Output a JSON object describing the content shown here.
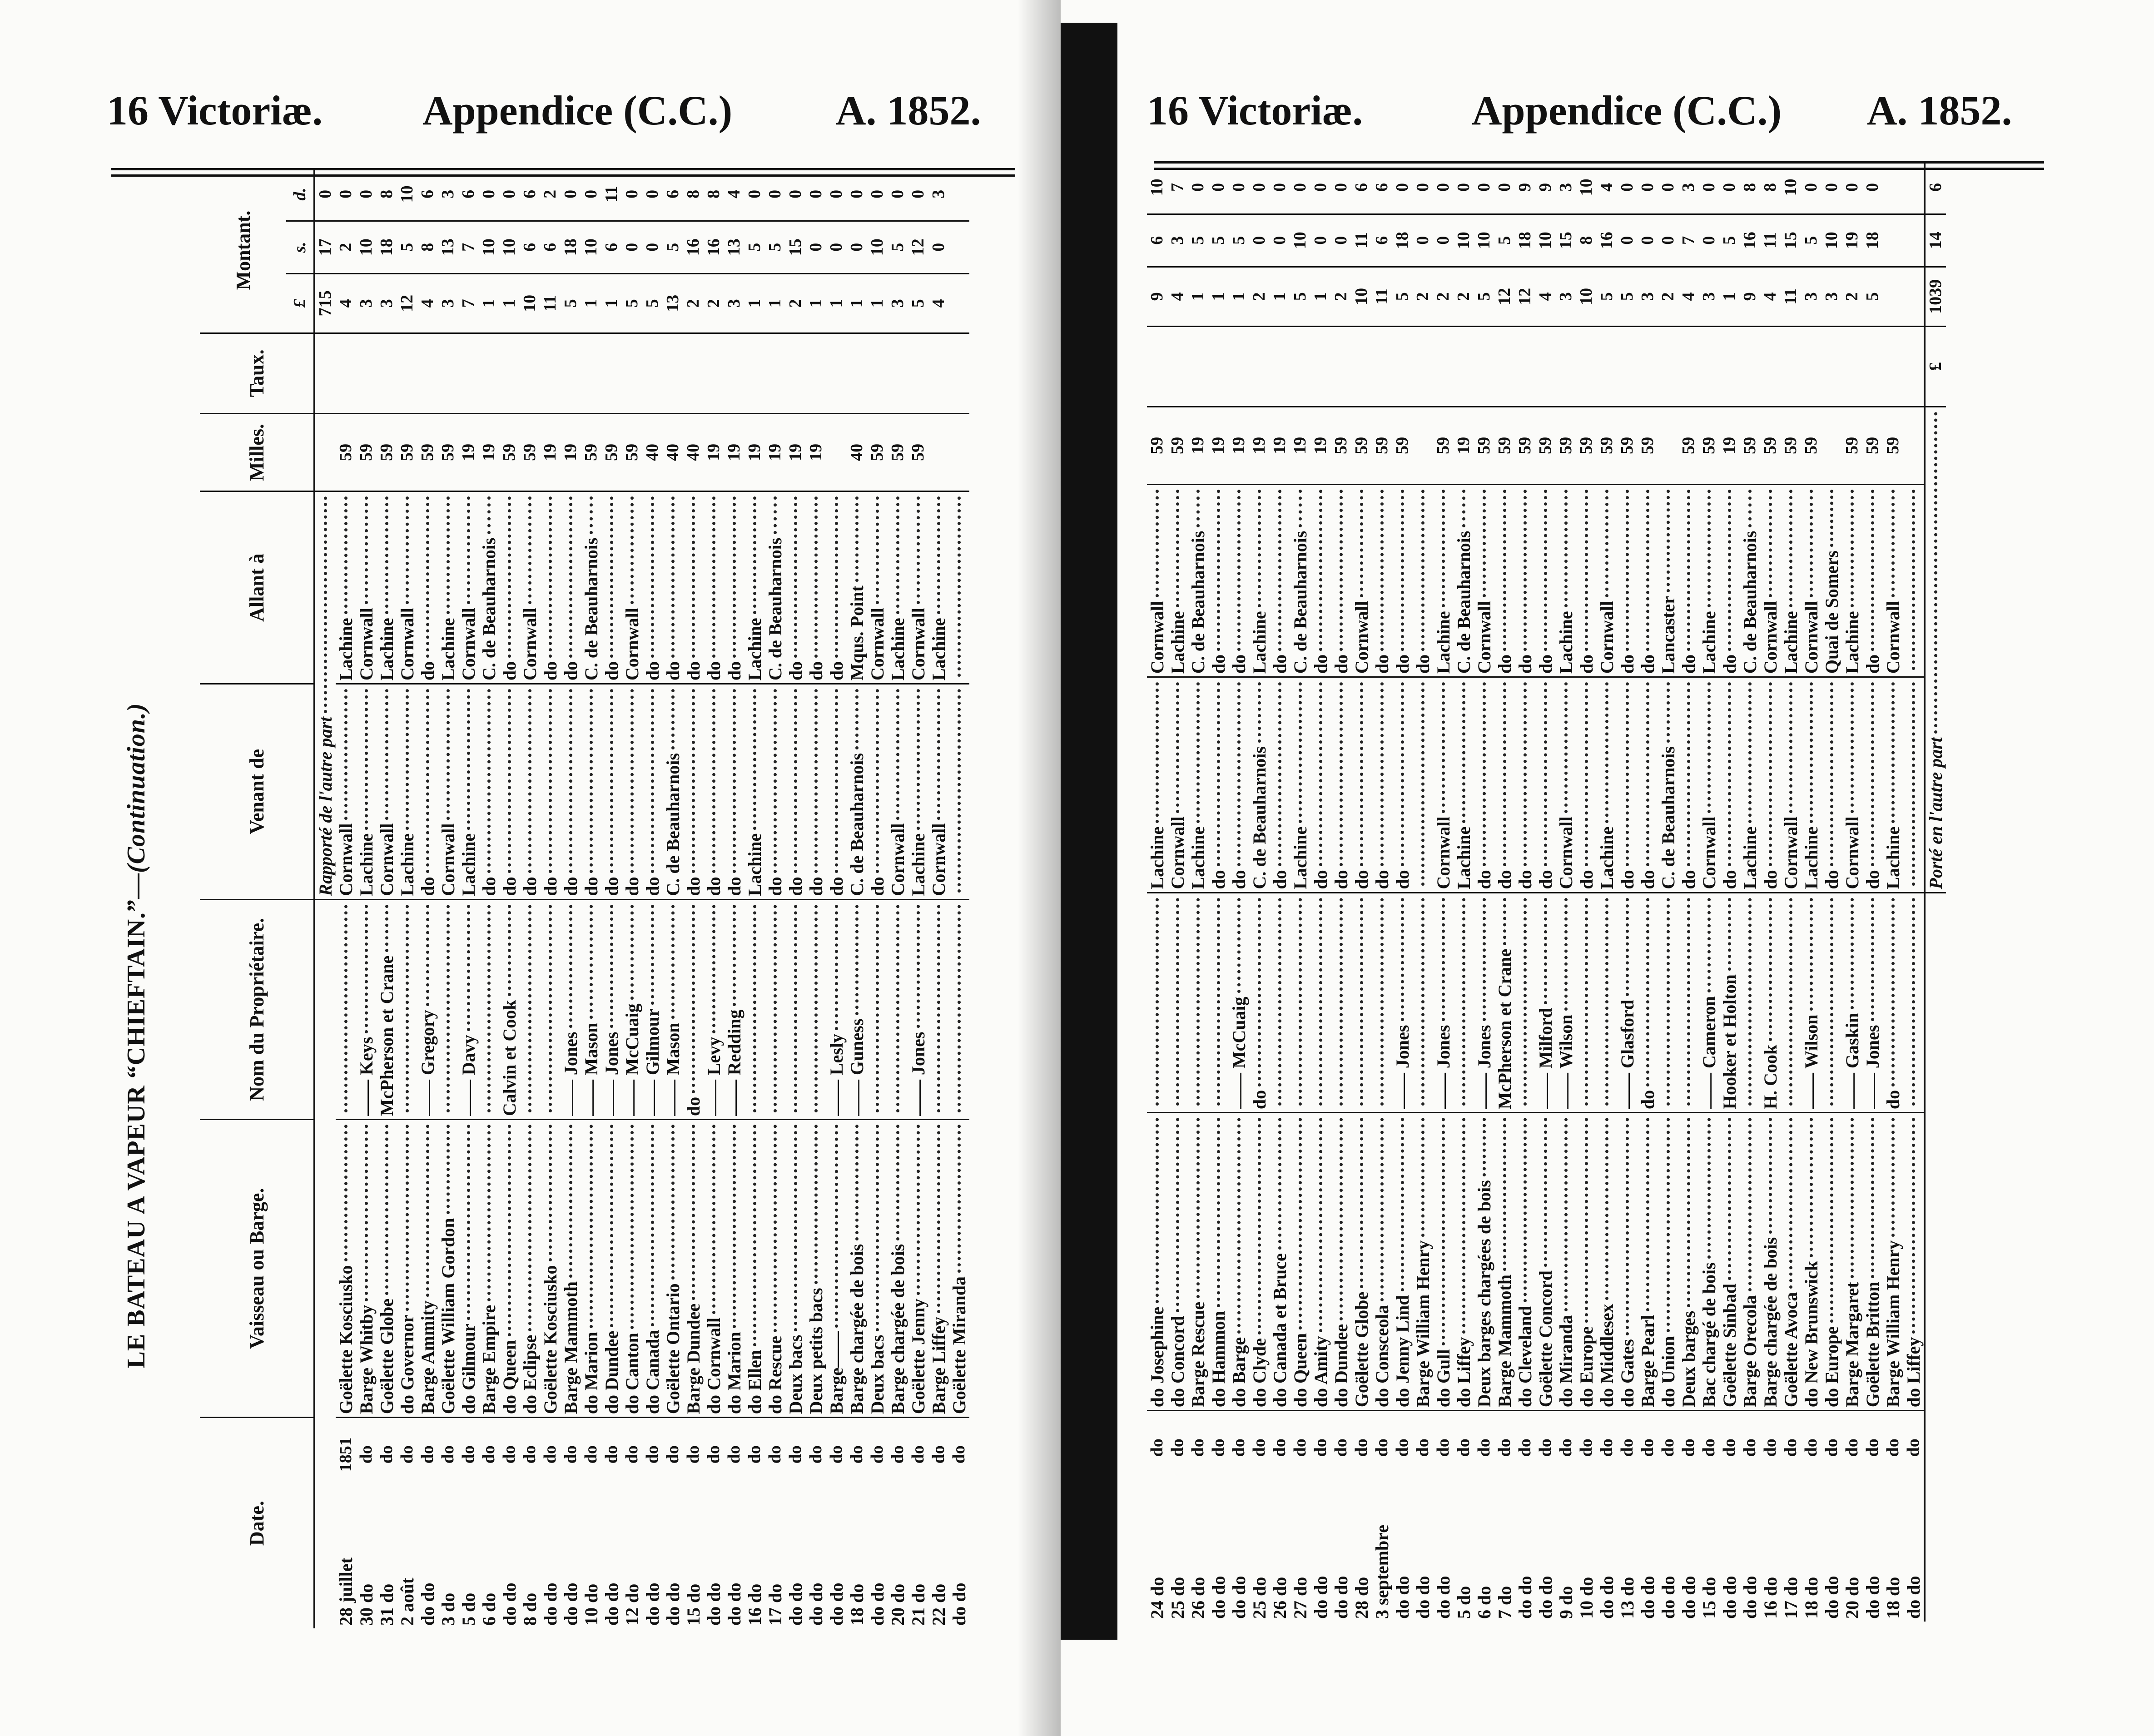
{
  "header_left": {
    "session": "16 Victoriæ.",
    "appendix": "Appendice (C.C.)",
    "year": "A. 1852."
  },
  "header_right": {
    "session": "16 Victoriæ.",
    "appendix": "Appendice (C.C.)",
    "year": "A. 1852."
  },
  "title": {
    "main": "LE BATEAU A VAPEUR “CHIEFTAIN.”—",
    "cont": "(Continuation.)"
  },
  "columns": {
    "date": "Date.",
    "vessel": "Vaisseau ou Barge.",
    "owner": "Nom du Propriétaire.",
    "from": "Venant de",
    "to": "Allant à",
    "miles": "Milles.",
    "rate": "Taux.",
    "amount": "Montant.",
    "pounds": "£",
    "shillings": "s.",
    "pence": "d."
  },
  "left_table": {
    "carried": {
      "label": "Rapporté de l'autre part",
      "pounds": "715",
      "shillings": "17",
      "pence": "0"
    },
    "rows": [
      [
        "28 juillet",
        "1851",
        "Goëlette Kosciusko",
        "",
        "Cornwall",
        "Lachine",
        "59",
        "4",
        "2",
        "0"
      ],
      [
        "30 do",
        "do",
        "Barge Whitby",
        "—— Keys",
        "Lachine",
        "Cornwall",
        "59",
        "3",
        "10",
        "0"
      ],
      [
        "31 do",
        "do",
        "Goëlette Globe",
        "McPherson et Crane",
        "Cornwall",
        "Lachine",
        "59",
        "3",
        "18",
        "8"
      ],
      [
        "2 août",
        "do",
        "do Governor",
        "",
        "Lachine",
        "Cornwall",
        "59",
        "12",
        "5",
        "10"
      ],
      [
        "do do",
        "do",
        "Barge Ammity",
        "—— Gregory",
        "do",
        "do",
        "59",
        "4",
        "8",
        "6"
      ],
      [
        "3 do",
        "do",
        "Goëlette William Gordon",
        "",
        "Cornwall",
        "Lachine",
        "59",
        "3",
        "13",
        "3"
      ],
      [
        "5 do",
        "do",
        "do Gilmour",
        "—— Davy",
        "Lachine",
        "Cornwall",
        "19",
        "7",
        "7",
        "6"
      ],
      [
        "6 do",
        "do",
        "Barge Empire",
        "",
        "do",
        "C. de Beauharnois",
        "19",
        "1",
        "10",
        "0"
      ],
      [
        "do do",
        "do",
        "do Queen",
        "Calvin et Cook",
        "do",
        "do",
        "59",
        "1",
        "10",
        "0"
      ],
      [
        "8 do",
        "do",
        "do Eclipse",
        "",
        "do",
        "Cornwall",
        "59",
        "10",
        "6",
        "6"
      ],
      [
        "do do",
        "do",
        "Goëlette Kosciusko",
        "",
        "do",
        "do",
        "19",
        "11",
        "6",
        "2"
      ],
      [
        "do do",
        "do",
        "Barge Mammoth",
        "—— Jones",
        "do",
        "do",
        "19",
        "5",
        "18",
        "0"
      ],
      [
        "10 do",
        "do",
        "do Marion",
        "—— Mason",
        "do",
        "C. de Beauharnois",
        "59",
        "1",
        "10",
        "0"
      ],
      [
        "do do",
        "do",
        "do Dundee",
        "—— Jones",
        "do",
        "do",
        "59",
        "1",
        "6",
        "11"
      ],
      [
        "12 do",
        "do",
        "do Canton",
        "—— McCuaig",
        "do",
        "Cornwall",
        "59",
        "5",
        "0",
        "0"
      ],
      [
        "do do",
        "do",
        "do Canada",
        "—— Gilmour",
        "do",
        "do",
        "40",
        "5",
        "0",
        "0"
      ],
      [
        "do do",
        "do",
        "Goëlette Ontario",
        "—— Mason",
        "C. de Beauharnois",
        "do",
        "40",
        "13",
        "5",
        "6"
      ],
      [
        "15 do",
        "do",
        "Barge Dundee",
        "do",
        "do",
        "do",
        "40",
        "2",
        "16",
        "8"
      ],
      [
        "do do",
        "do",
        "do Cornwall",
        "—— Levy",
        "do",
        "do",
        "19",
        "2",
        "16",
        "8"
      ],
      [
        "do do",
        "do",
        "do Marion",
        "—— Redding",
        "do",
        "do",
        "19",
        "3",
        "13",
        "4"
      ],
      [
        "16 do",
        "do",
        "do Ellen",
        "",
        "Lachine",
        "Lachine",
        "19",
        "1",
        "5",
        "0"
      ],
      [
        "17 do",
        "do",
        "do Rescue",
        "",
        "do",
        "C. de Beauharnois",
        "19",
        "1",
        "5",
        "0"
      ],
      [
        "do do",
        "do",
        "Deux bacs",
        "",
        "do",
        "do",
        "19",
        "2",
        "15",
        "0"
      ],
      [
        "do do",
        "do",
        "Deux petits bacs",
        "",
        "do",
        "do",
        "19",
        "1",
        "0",
        "0"
      ],
      [
        "do do",
        "do",
        "Barge——",
        "—— Lesly",
        "do",
        "do",
        "",
        "1",
        "0",
        "0"
      ],
      [
        "18 do",
        "do",
        "Barge chargée de bois",
        "—— Guness",
        "C. de Beauharnois",
        "Mqus. Point",
        "40",
        "1",
        "0",
        "0"
      ],
      [
        "do do",
        "do",
        "Deux bacs",
        "",
        "do",
        "Cornwall",
        "59",
        "1",
        "10",
        "0"
      ],
      [
        "20 do",
        "do",
        "Barge chargée de bois",
        "",
        "Cornwall",
        "Lachine",
        "59",
        "3",
        "5",
        "0"
      ],
      [
        "21 do",
        "do",
        "Goëlette Jenny",
        "—— Jones",
        "Lachine",
        "Cornwall",
        "59",
        "5",
        "12",
        "0"
      ],
      [
        "22 do",
        "do",
        "Barge Liffey",
        "",
        "Cornwall",
        "Lachine",
        "",
        "4",
        "0",
        "3"
      ],
      [
        "do do",
        "do",
        "Goëlette Miranda",
        "",
        "",
        "",
        "",
        "",
        "",
        ""
      ]
    ]
  },
  "right_table": {
    "rows": [
      [
        "24 do",
        "do",
        "do Josephine",
        "",
        "Lachine",
        "Cornwall",
        "59",
        "9",
        "6",
        "10"
      ],
      [
        "25 do",
        "do",
        "do Concord",
        "",
        "Cornwall",
        "Lachine",
        "59",
        "4",
        "3",
        "7"
      ],
      [
        "26 do",
        "do",
        "Barge Rescue",
        "",
        "Lachine",
        "C. de Beauharnois",
        "19",
        "1",
        "5",
        "0"
      ],
      [
        "do do",
        "do",
        "do Hammon",
        "",
        "do",
        "do",
        "19",
        "1",
        "5",
        "0"
      ],
      [
        "do do",
        "do",
        "do Barge",
        "—— McCuaig",
        "do",
        "do",
        "19",
        "1",
        "5",
        "0"
      ],
      [
        "25 do",
        "do",
        "do Clyde",
        "do",
        "C. de Beauharnois",
        "Lachine",
        "19",
        "2",
        "0",
        "0"
      ],
      [
        "26 do",
        "do",
        "do Canada et Bruce",
        "",
        "do",
        "do",
        "19",
        "1",
        "0",
        "0"
      ],
      [
        "27 do",
        "do",
        "do Queen",
        "",
        "Lachine",
        "C. de Beauharnois",
        "19",
        "5",
        "10",
        "0"
      ],
      [
        "do do",
        "do",
        "do Amity",
        "",
        "do",
        "do",
        "19",
        "1",
        "0",
        "0"
      ],
      [
        "do do",
        "do",
        "do Dundee",
        "",
        "do",
        "do",
        "59",
        "2",
        "0",
        "0"
      ],
      [
        "28 do",
        "do",
        "Goëlette Globe",
        "",
        "do",
        "Cornwall",
        "59",
        "10",
        "11",
        "6"
      ],
      [
        "3 septembre",
        "do",
        "do Consceola",
        "",
        "do",
        "do",
        "59",
        "11",
        "6",
        "6"
      ],
      [
        "do do",
        "do",
        "do Jenny Lind",
        "—— Jones",
        "do",
        "do",
        "59",
        "5",
        "18",
        "0"
      ],
      [
        "do do",
        "do",
        "Barge William Henry",
        "",
        "",
        "do",
        "",
        "2",
        "0",
        "0"
      ],
      [
        "do do",
        "do",
        "do Gull",
        "—— Jones",
        "Cornwall",
        "Lachine",
        "59",
        "2",
        "0",
        "0"
      ],
      [
        "5 do",
        "do",
        "do Liffey",
        "",
        "Lachine",
        "C. de Beauharnois",
        "19",
        "2",
        "10",
        "0"
      ],
      [
        "6 do",
        "do",
        "Deux barges chargées de bois",
        "—— Jones",
        "do",
        "Cornwall",
        "59",
        "5",
        "10",
        "0"
      ],
      [
        "7 do",
        "do",
        "Barge Mammoth",
        "McPherson et Crane",
        "do",
        "do",
        "59",
        "12",
        "5",
        "0"
      ],
      [
        "do do",
        "do",
        "do Cleveland",
        "",
        "do",
        "do",
        "59",
        "12",
        "18",
        "9"
      ],
      [
        "do do",
        "do",
        "Goëlette Concord",
        "—— Milford",
        "do",
        "do",
        "59",
        "4",
        "10",
        "9"
      ],
      [
        "9 do",
        "do",
        "do Miranda",
        "—— Wilson",
        "Cornwall",
        "Lachine",
        "59",
        "3",
        "15",
        "3"
      ],
      [
        "10 do",
        "do",
        "do Europe",
        "",
        "do",
        "do",
        "59",
        "10",
        "8",
        "10"
      ],
      [
        "do do",
        "do",
        "do Middlesex",
        "",
        "Lachine",
        "Cornwall",
        "59",
        "5",
        "16",
        "4"
      ],
      [
        "13 do",
        "do",
        "do Gates",
        "—— Glasford",
        "do",
        "do",
        "59",
        "5",
        "0",
        "0"
      ],
      [
        "do do",
        "do",
        "Barge Pearl",
        "do",
        "do",
        "do",
        "59",
        "3",
        "0",
        "0"
      ],
      [
        "do do",
        "do",
        "do Union",
        "",
        "C. de Beauharnois",
        "Lancaster",
        "",
        "2",
        "0",
        "0"
      ],
      [
        "do do",
        "do",
        "Deux barges",
        "",
        "do",
        "do",
        "59",
        "4",
        "7",
        "3"
      ],
      [
        "15 do",
        "do",
        "Bac chargé de bois",
        "—— Cameron",
        "Cornwall",
        "Lachine",
        "59",
        "3",
        "0",
        "0"
      ],
      [
        "do do",
        "do",
        "Goëlette Sinbad",
        "Hooker et Holton",
        "do",
        "do",
        "19",
        "1",
        "5",
        "0"
      ],
      [
        "do do",
        "do",
        "Barge Orecola",
        "",
        "Lachine",
        "C. de Beauharnois",
        "59",
        "9",
        "16",
        "8"
      ],
      [
        "16 do",
        "do",
        "Barge chargée de bois",
        "H. Cook",
        "do",
        "Cornwall",
        "59",
        "4",
        "11",
        "8"
      ],
      [
        "17 do",
        "do",
        "Goëlette Avoca",
        "",
        "Cornwall",
        "Lachine",
        "59",
        "11",
        "15",
        "10"
      ],
      [
        "18 do",
        "do",
        "do New Brunswick",
        "—— Wilson",
        "Lachine",
        "Cornwall",
        "59",
        "3",
        "5",
        "0"
      ],
      [
        "do do",
        "do",
        "do Europe",
        "",
        "do",
        "Quai de Somers",
        "",
        "3",
        "10",
        "0"
      ],
      [
        "20 do",
        "do",
        "Barge Margaret",
        "—— Gaskin",
        "Cornwall",
        "Lachine",
        "59",
        "2",
        "19",
        "0"
      ],
      [
        "do do",
        "do",
        "Goëlette Britton",
        "—— Jones",
        "do",
        "do",
        "59",
        "5",
        "18",
        "0"
      ],
      [
        "18 do",
        "do",
        "Barge William Henry",
        "do",
        "Lachine",
        "Cornwall",
        "59",
        "",
        "",
        ""
      ],
      [
        "do do",
        "do",
        "do Liffey",
        "",
        "",
        "",
        "",
        "",
        "",
        ""
      ]
    ],
    "total": {
      "label": "Porté en l'autre part",
      "currency": "£",
      "pounds": "1039",
      "shillings": "14",
      "pence": "6"
    }
  }
}
